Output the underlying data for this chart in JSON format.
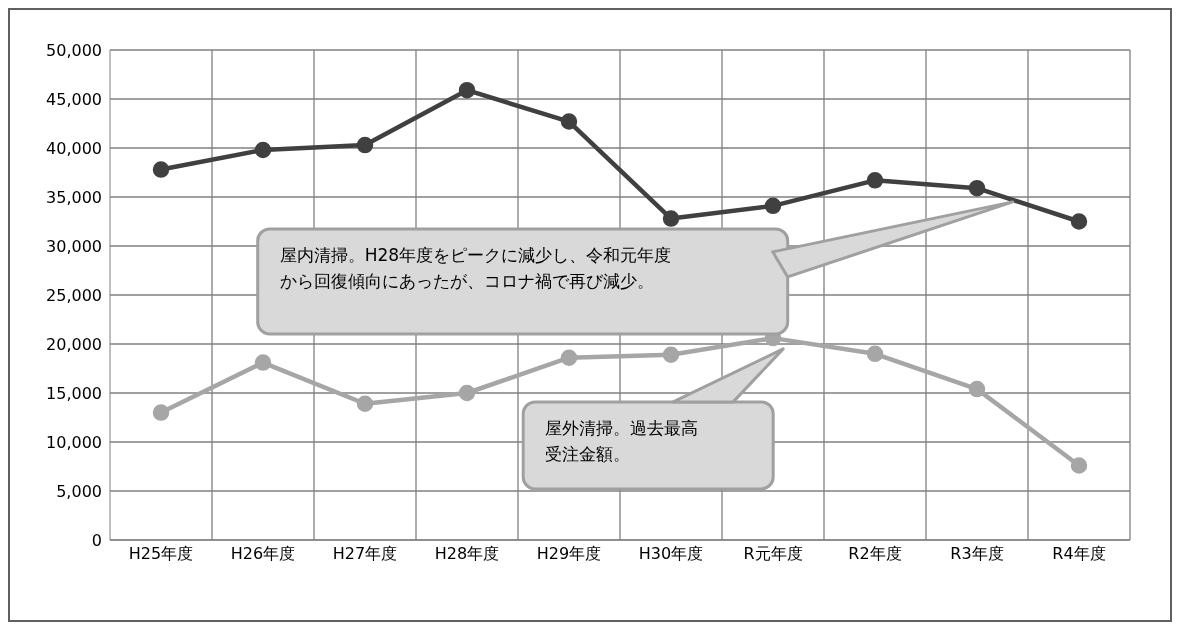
{
  "chart_data": {
    "type": "line",
    "categories": [
      "H25年度",
      "H26年度",
      "H27年度",
      "H28年度",
      "H29年度",
      "H30年度",
      "R元年度",
      "R2年度",
      "R3年度",
      "R4年度"
    ],
    "series": [
      {
        "color": "#404040",
        "values": [
          37800,
          39800,
          40300,
          45900,
          42700,
          32800,
          34100,
          36700,
          35900,
          32500
        ]
      },
      {
        "color": "#a6a6a6",
        "values": [
          13000,
          18100,
          13900,
          15000,
          18600,
          18900,
          20600,
          19000,
          15400,
          7600
        ]
      }
    ],
    "ylim": [
      0,
      50000
    ],
    "yticks": [
      {
        "value": 0,
        "label": "0"
      },
      {
        "value": 5000,
        "label": "5,000"
      },
      {
        "value": 10000,
        "label": "10,000"
      },
      {
        "value": 15000,
        "label": "15,000"
      },
      {
        "value": 20000,
        "label": "20,000"
      },
      {
        "value": 25000,
        "label": "25,000"
      },
      {
        "value": 30000,
        "label": "30,000"
      },
      {
        "value": 35000,
        "label": "35,000"
      },
      {
        "value": 40000,
        "label": "40,000"
      },
      {
        "value": 45000,
        "label": "45,000"
      },
      {
        "value": 50000,
        "label": "50,000"
      }
    ],
    "grid": true,
    "marker": "circle",
    "line_style": "solid",
    "annotations": [
      "屋内清掃。H28年度をピークに減少し、令和元年度から回復傾向にあったが、コロナ禍で再び減少。",
      "屋外清掃。過去最高受注金額。"
    ]
  }
}
